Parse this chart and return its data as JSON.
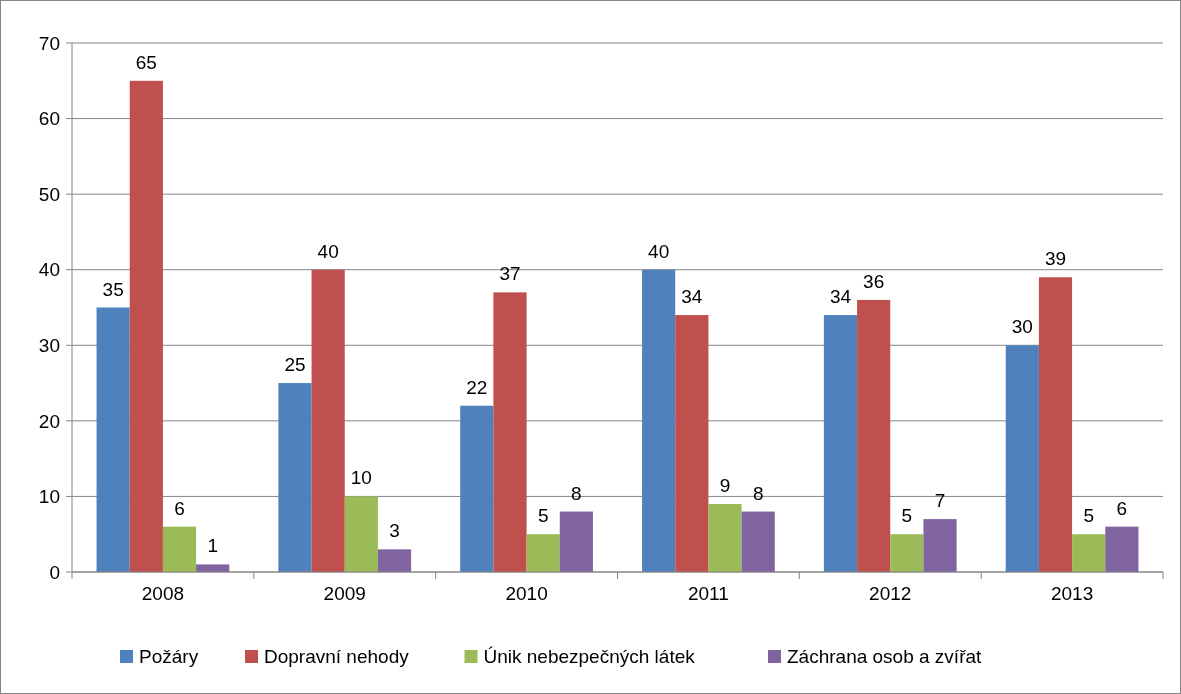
{
  "chart_data": {
    "type": "bar",
    "categories": [
      "2008",
      "2009",
      "2010",
      "2011",
      "2012",
      "2013"
    ],
    "series": [
      {
        "name": "Požáry",
        "color": "#4f81bd",
        "values": [
          35,
          25,
          22,
          40,
          34,
          30
        ]
      },
      {
        "name": "Dopravní nehody",
        "color": "#c0504d",
        "values": [
          65,
          40,
          37,
          34,
          36,
          39
        ]
      },
      {
        "name": "Únik nebezpečných látek",
        "color": "#9bbb59",
        "values": [
          6,
          10,
          5,
          9,
          5,
          5
        ]
      },
      {
        "name": "Záchrana osob a zvířat",
        "color": "#8064a2",
        "values": [
          1,
          3,
          8,
          8,
          7,
          6
        ]
      }
    ],
    "ylim": [
      0,
      70
    ],
    "yticks": [
      0,
      10,
      20,
      30,
      40,
      50,
      60,
      70
    ],
    "grid": "y",
    "legend": "bottom",
    "data_labels": true
  }
}
